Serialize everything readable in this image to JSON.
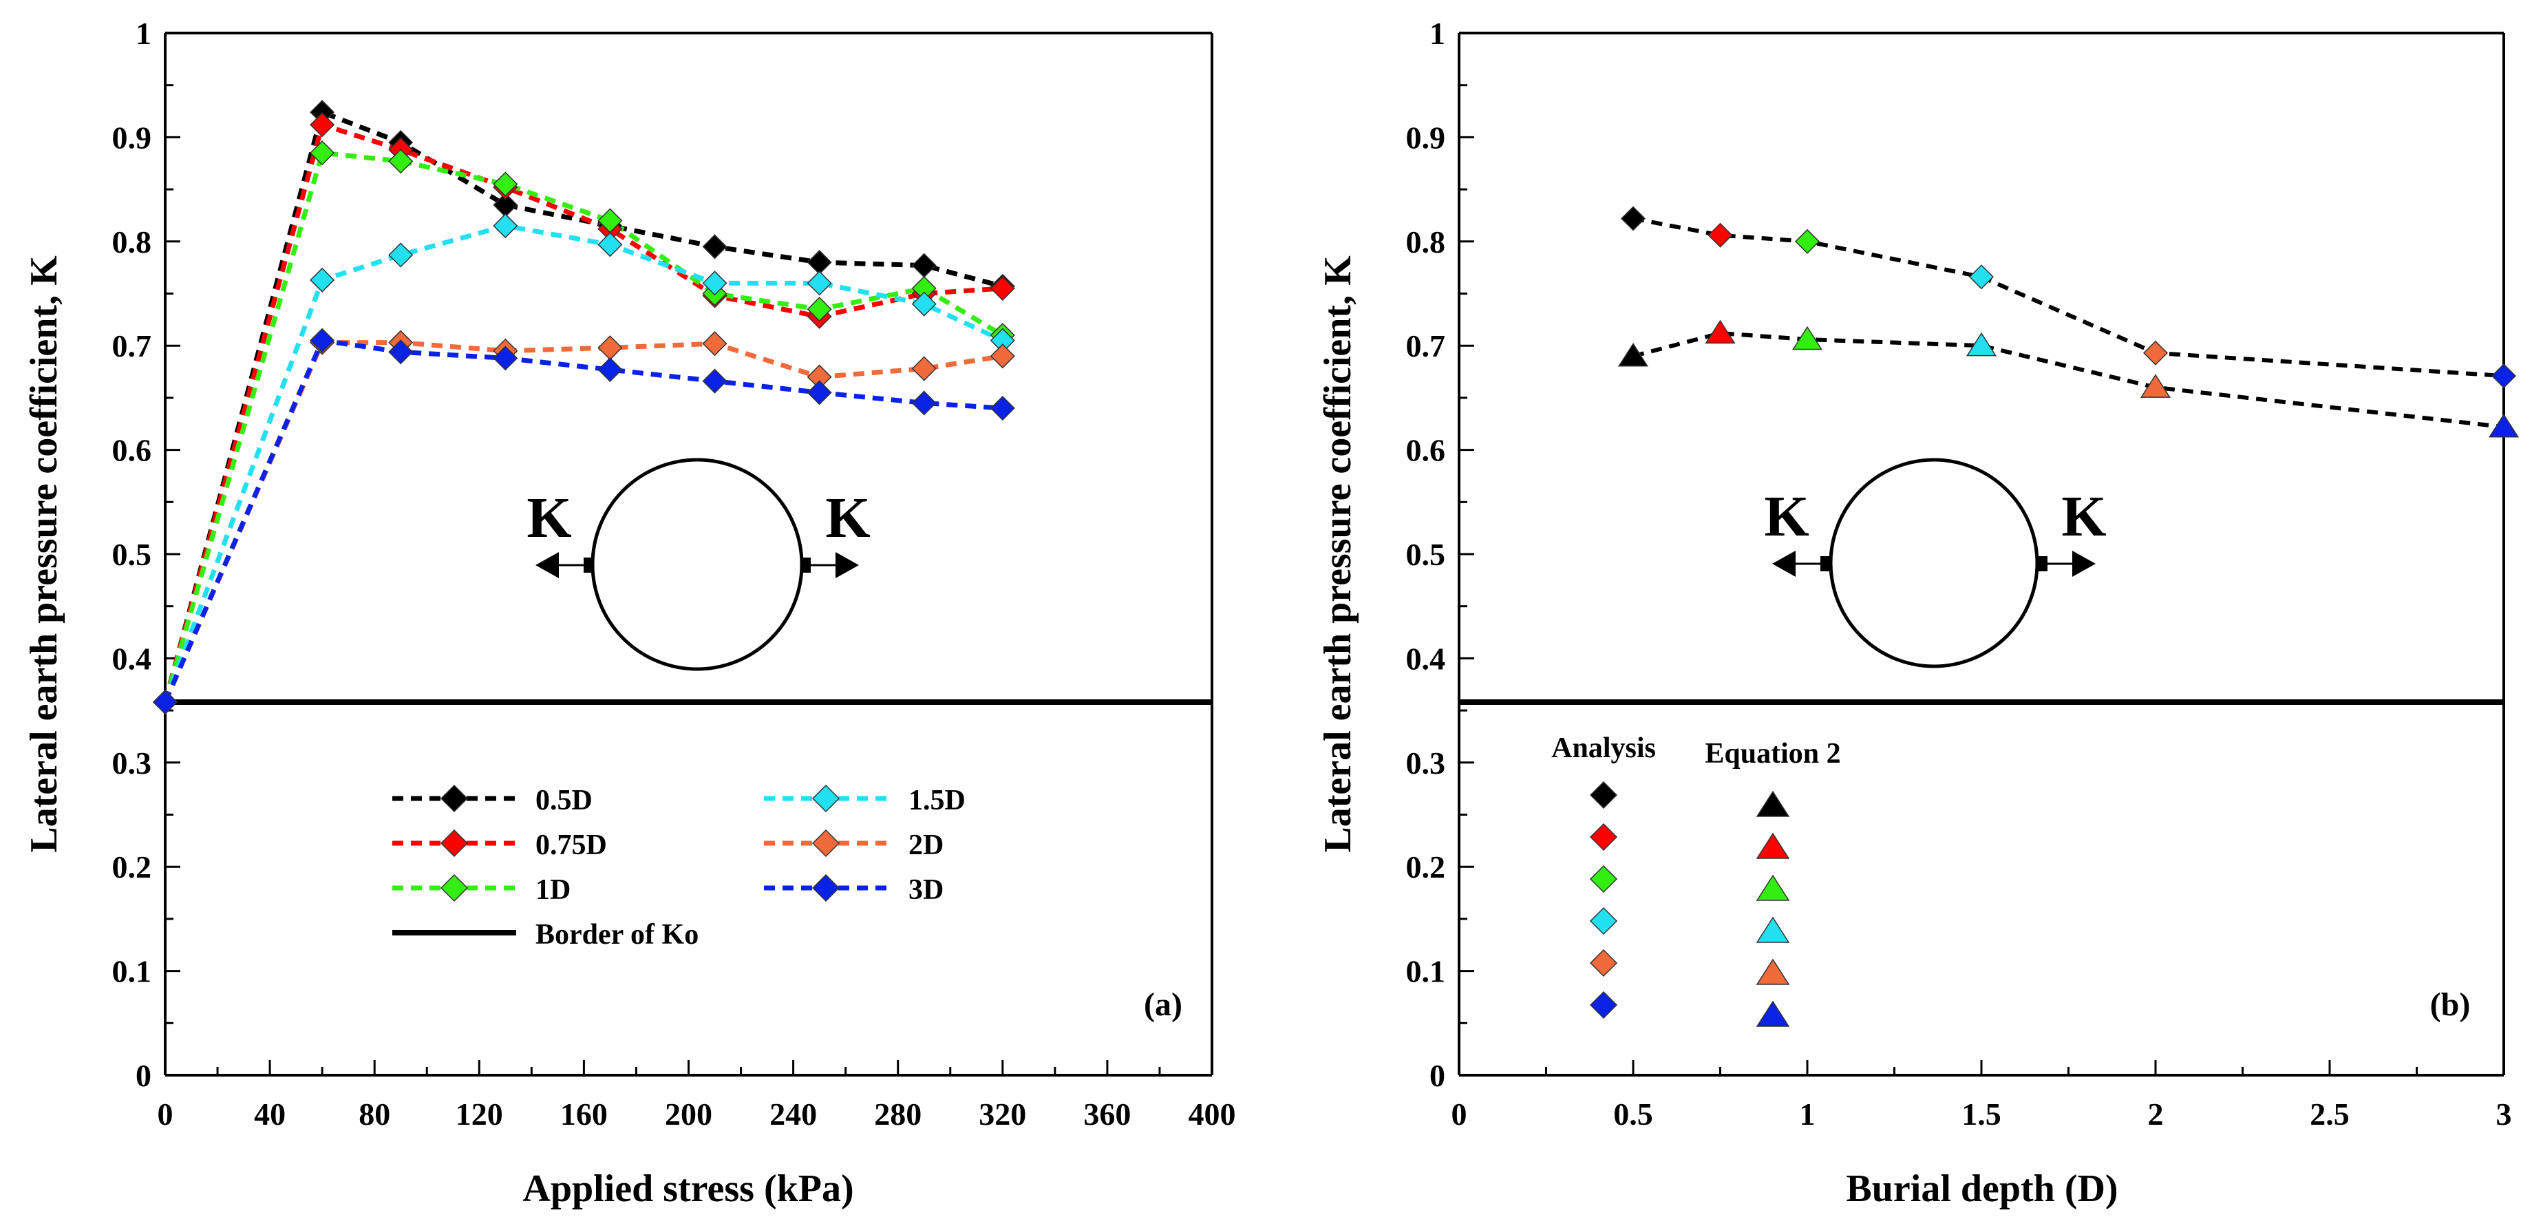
{
  "chart_data": [
    {
      "type": "line",
      "panel_label": "(a)",
      "xlabel": "Applied stress (kPa)",
      "ylabel": "Lateral earth pressure coefficient, K",
      "xlim": [
        0,
        400
      ],
      "ylim": [
        0,
        1
      ],
      "xticks": [
        0,
        40,
        80,
        120,
        160,
        200,
        240,
        280,
        320,
        360,
        400
      ],
      "yticks": [
        0,
        0.1,
        0.2,
        0.3,
        0.4,
        0.5,
        0.6,
        0.7,
        0.8,
        0.9,
        1
      ],
      "grid": false,
      "legend_position": "lower-center",
      "x": [
        0,
        60,
        90,
        130,
        170,
        210,
        250,
        290,
        320
      ],
      "series": [
        {
          "name": "0.5D",
          "color": "#000000",
          "marker": "diamond",
          "values": [
            0.358,
            0.924,
            0.895,
            0.835,
            0.815,
            0.795,
            0.78,
            0.777,
            0.757
          ]
        },
        {
          "name": "0.75D",
          "color": "#ff0000",
          "marker": "diamond",
          "values": [
            0.358,
            0.912,
            0.888,
            0.852,
            0.812,
            0.748,
            0.728,
            0.75,
            0.755
          ]
        },
        {
          "name": "1D",
          "color": "#33ee11",
          "marker": "diamond",
          "values": [
            0.358,
            0.885,
            0.877,
            0.855,
            0.82,
            0.75,
            0.735,
            0.755,
            0.71
          ]
        },
        {
          "name": "1.5D",
          "color": "#22e0f0",
          "marker": "diamond",
          "values": [
            0.358,
            0.763,
            0.787,
            0.815,
            0.797,
            0.76,
            0.76,
            0.74,
            0.705
          ]
        },
        {
          "name": "2D",
          "color": "#f06a3a",
          "marker": "diamond",
          "values": [
            0.358,
            0.703,
            0.703,
            0.695,
            0.698,
            0.702,
            0.67,
            0.678,
            0.69
          ]
        },
        {
          "name": "3D",
          "color": "#0a22e6",
          "marker": "diamond",
          "values": [
            0.358,
            0.705,
            0.694,
            0.688,
            0.677,
            0.666,
            0.655,
            0.645,
            0.64
          ]
        }
      ],
      "reference_line": {
        "name": "Border of Ko",
        "y": 0.358,
        "color": "#000000"
      },
      "annotation": {
        "left_label": "K",
        "right_label": "K"
      }
    },
    {
      "type": "line",
      "panel_label": "(b)",
      "xlabel": "Burial depth (D)",
      "ylabel": "Lateral earth pressure coefficient, K",
      "xlim": [
        0,
        3
      ],
      "ylim": [
        0,
        1
      ],
      "xticks": [
        0,
        0.5,
        1,
        1.5,
        2,
        2.5,
        3
      ],
      "yticks": [
        0,
        0.1,
        0.2,
        0.3,
        0.4,
        0.5,
        0.6,
        0.7,
        0.8,
        0.9,
        1
      ],
      "grid": false,
      "legend_position": "lower-left",
      "x": [
        0.5,
        0.75,
        1,
        1.5,
        2,
        3
      ],
      "point_colors": [
        "#000000",
        "#ff0000",
        "#33ee11",
        "#22e0f0",
        "#f06a3a",
        "#0a22e6"
      ],
      "series": [
        {
          "name": "Analysis",
          "marker": "diamond",
          "values": [
            0.822,
            0.806,
            0.8,
            0.766,
            0.693,
            0.671
          ]
        },
        {
          "name": "Equation 2",
          "marker": "triangle",
          "values": [
            0.69,
            0.712,
            0.706,
            0.7,
            0.66,
            0.622
          ]
        }
      ],
      "reference_line": {
        "y": 0.358,
        "color": "#000000"
      },
      "annotation": {
        "left_label": "K",
        "right_label": "K"
      }
    }
  ]
}
